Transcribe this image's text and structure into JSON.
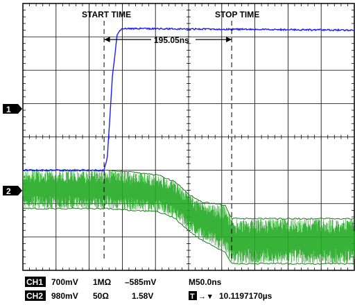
{
  "chart_data": {
    "type": "line",
    "annotations": {
      "start": "START TIME",
      "stop": "STOP TIME",
      "interval": "195.05ns"
    },
    "channel_markers": [
      "1",
      "2"
    ],
    "grid": {
      "divisions_x": 10,
      "divisions_y": 8,
      "minor_ticks": true
    },
    "series": [
      {
        "channel": "1",
        "color": "#1a1aff",
        "x_div": [
          0,
          2.45,
          2.55,
          2.7,
          2.85,
          3.0,
          10
        ],
        "y_div": [
          3.0,
          3.0,
          3.4,
          5.8,
          7.1,
          7.25,
          7.2
        ]
      },
      {
        "channel": "2",
        "color": "#22aa22",
        "x_div": [
          0,
          2.5,
          3.3,
          4.1,
          4.6,
          5.05,
          5.4,
          6.1,
          6.3,
          10
        ],
        "envelope_upper": [
          3.0,
          3.0,
          2.95,
          2.85,
          2.65,
          2.25,
          2.05,
          1.95,
          1.55,
          1.55
        ],
        "envelope_lower": [
          1.85,
          1.85,
          1.8,
          1.75,
          1.55,
          1.15,
          0.9,
          0.55,
          0.2,
          0.2
        ]
      }
    ],
    "cursors_x_div": [
      2.45,
      6.3
    ]
  },
  "readout": {
    "row1": {
      "ch": "CH1",
      "scale": "700mV",
      "coupling": "1MΩ",
      "offset": "–585mV",
      "time": "M50.0ns"
    },
    "row2": {
      "ch": "CH2",
      "scale": "980mV",
      "coupling": "50Ω",
      "offset": "1.58V",
      "trigger_icon": "T",
      "trigger_arrow": "→ ▾",
      "trigger_pos": "10.1197170µs"
    }
  },
  "colors": {
    "ch1": "#1a1aff",
    "ch2": "#22aa22",
    "grid": "#000000"
  }
}
